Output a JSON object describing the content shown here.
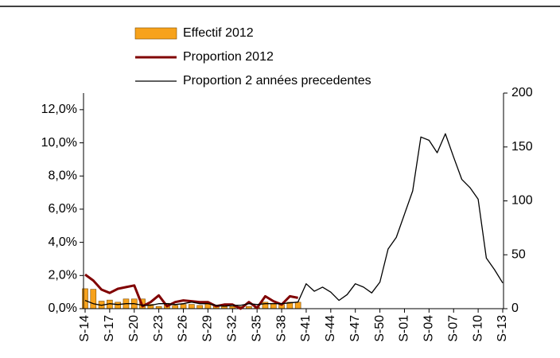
{
  "chart_data": {
    "type": "combo",
    "categories": [
      "S-14",
      null,
      null,
      "S-17",
      null,
      null,
      "S-20",
      null,
      null,
      "S-23",
      null,
      null,
      "S-26",
      null,
      null,
      "S-29",
      null,
      null,
      "S-32",
      null,
      null,
      "S-35",
      null,
      null,
      "S-38",
      null,
      null,
      "S-41",
      null,
      null,
      "S-44",
      null,
      null,
      "S-47",
      null,
      null,
      "S-50",
      null,
      null,
      "S-01",
      null,
      null,
      "S-04",
      null,
      null,
      "S-07",
      null,
      null,
      "S-10",
      null,
      null,
      "S-13"
    ],
    "series": [
      {
        "name": "Effectif 2012",
        "type": "bar",
        "axis": "y2",
        "color": "#f7a21b",
        "values": [
          18.5,
          18,
          7,
          8,
          6,
          9,
          9,
          9,
          4,
          2,
          5,
          3,
          4,
          4,
          3,
          5,
          3,
          2,
          2,
          2,
          2,
          1,
          6,
          5,
          4,
          6,
          6,
          null,
          null,
          null,
          null,
          null,
          null,
          null,
          null,
          null,
          null,
          null,
          null,
          null,
          null,
          null,
          null,
          null,
          null,
          null,
          null,
          null,
          null,
          null,
          null,
          null
        ]
      },
      {
        "name": "Proportion 2012",
        "type": "line",
        "color": "#800000",
        "values": [
          2.06,
          1.7,
          1.15,
          0.95,
          1.2,
          1.3,
          1.4,
          0.15,
          0.4,
          0.8,
          0.15,
          0.4,
          0.5,
          0.45,
          0.4,
          0.4,
          0.15,
          0.25,
          0.25,
          0,
          0.4,
          0.05,
          0.75,
          0.45,
          0.25,
          0.75,
          0.65,
          null,
          null,
          null,
          null,
          null,
          null,
          null,
          null,
          null,
          null,
          null,
          null,
          null,
          null,
          null,
          null,
          null,
          null,
          null,
          null,
          null,
          null,
          null,
          null,
          null
        ]
      },
      {
        "name": "Proportion 2 années precedentes",
        "type": "line",
        "color": "#000000",
        "values": [
          0.5,
          0.3,
          0.2,
          0.3,
          0.25,
          0.3,
          0.3,
          0.2,
          0.2,
          0.3,
          0.3,
          0.25,
          0.3,
          0.4,
          0.3,
          0.3,
          0.2,
          0.15,
          0.2,
          0.2,
          0.3,
          0.25,
          0.3,
          0.3,
          0.3,
          0.35,
          0.4,
          1.5,
          1.05,
          1.3,
          1.0,
          0.5,
          0.85,
          1.5,
          1.3,
          0.95,
          1.6,
          3.6,
          4.3,
          5.7,
          7.1,
          10.35,
          10.15,
          9.4,
          10.55,
          9.15,
          7.8,
          7.3,
          6.6,
          3.05,
          2.35,
          1.55
        ]
      }
    ],
    "ylim": [
      0,
      13
    ],
    "yticks": [
      {
        "value": 0,
        "label": "0,0%"
      },
      {
        "value": 2,
        "label": "2,0%"
      },
      {
        "value": 4,
        "label": "4,0%"
      },
      {
        "value": 6,
        "label": "6,0%"
      },
      {
        "value": 8,
        "label": "8,0%"
      },
      {
        "value": 10,
        "label": "10,0%"
      },
      {
        "value": 12,
        "label": "12,0%"
      }
    ],
    "y2lim": [
      0,
      200
    ],
    "y2ticks": [
      0,
      50,
      100,
      150,
      200
    ]
  }
}
